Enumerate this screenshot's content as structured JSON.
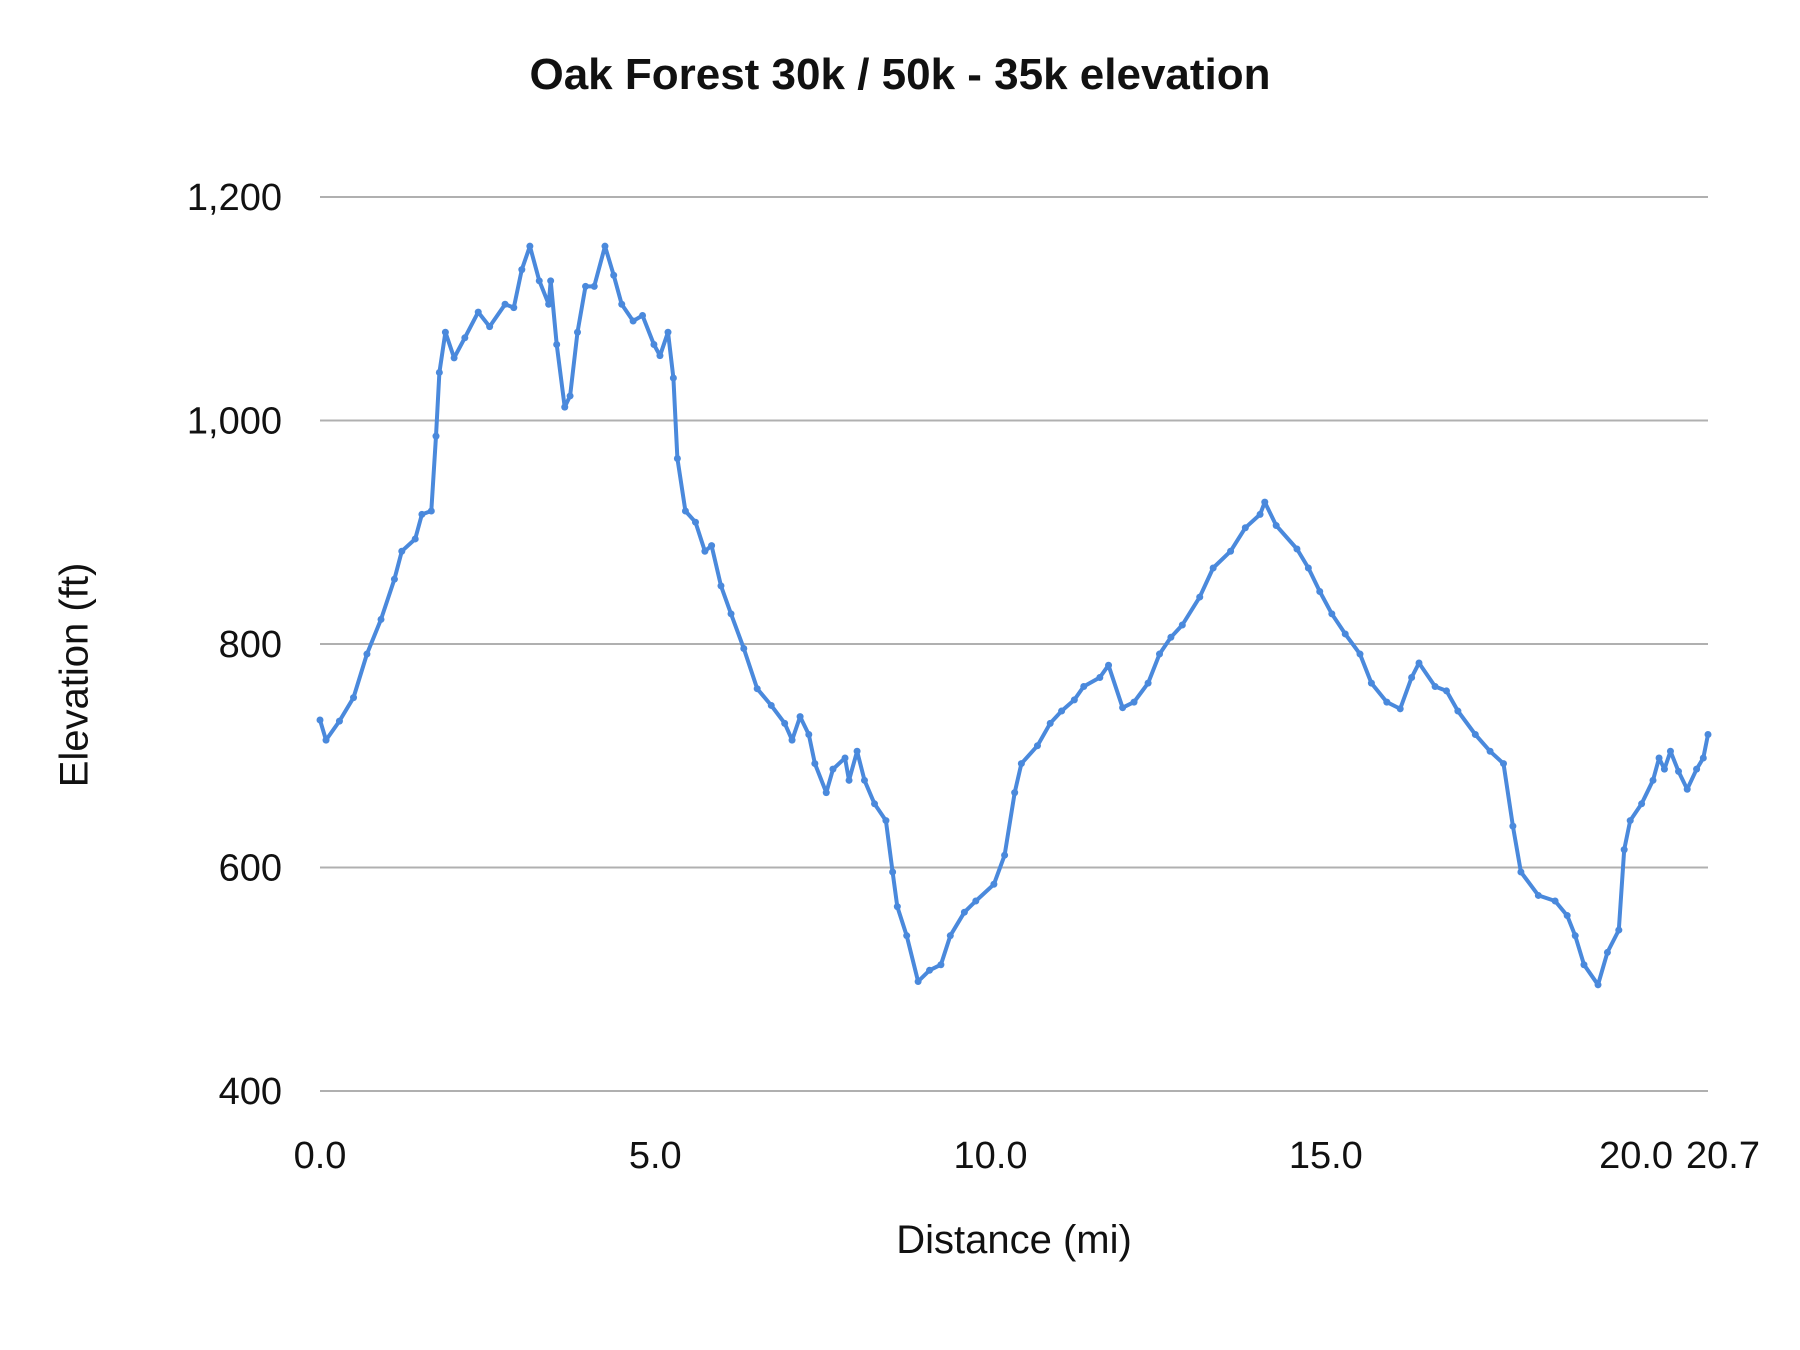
{
  "chart_data": {
    "type": "line",
    "title": "Oak Forest 30k / 50k  - 35k  elevation",
    "xlabel": "Distance (mi)",
    "ylabel": "Elevation (ft)",
    "xlim": [
      0,
      20.7
    ],
    "ylim": [
      400,
      1200
    ],
    "grid": true,
    "legend": "none",
    "color": "#4a89dc",
    "yticks": [
      400,
      600,
      800,
      1000,
      1200
    ],
    "ytick_labels": [
      "400",
      "600",
      "800",
      "1,000",
      "1,200"
    ],
    "xticks": [
      0,
      5,
      10,
      15,
      20,
      20.7
    ],
    "xtick_labels": [
      "0.0",
      "5.0",
      "10.0",
      "15.0",
      "20.0",
      "20.7"
    ],
    "series": [
      {
        "name": "Elevation",
        "x": [
          0.0,
          0.09,
          0.29,
          0.5,
          0.7,
          0.91,
          1.11,
          1.22,
          1.42,
          1.52,
          1.66,
          1.73,
          1.78,
          1.87,
          2.0,
          2.16,
          2.36,
          2.53,
          2.76,
          2.89,
          3.01,
          3.13,
          3.27,
          3.41,
          3.44,
          3.53,
          3.65,
          3.73,
          3.84,
          3.96,
          4.09,
          4.25,
          4.38,
          4.5,
          4.67,
          4.81,
          4.98,
          5.07,
          5.19,
          5.27,
          5.33,
          5.45,
          5.6,
          5.74,
          5.84,
          5.98,
          6.13,
          6.32,
          6.52,
          6.73,
          6.93,
          7.04,
          7.16,
          7.29,
          7.38,
          7.55,
          7.65,
          7.83,
          7.89,
          8.01,
          8.12,
          8.27,
          8.44,
          8.54,
          8.61,
          8.75,
          8.92,
          9.09,
          9.26,
          9.4,
          9.61,
          9.78,
          10.05,
          10.21,
          10.36,
          10.46,
          10.7,
          10.89,
          11.06,
          11.25,
          11.39,
          11.63,
          11.76,
          11.97,
          12.14,
          12.35,
          12.52,
          12.69,
          12.86,
          13.12,
          13.32,
          13.58,
          13.8,
          14.02,
          14.09,
          14.26,
          14.57,
          14.74,
          14.91,
          15.09,
          15.29,
          15.51,
          15.68,
          15.91,
          16.11,
          16.28,
          16.39,
          16.63,
          16.8,
          16.97,
          17.23,
          17.45,
          17.65,
          17.79,
          17.91,
          18.17,
          18.42,
          18.6,
          18.72,
          18.85,
          19.06,
          19.2,
          19.37,
          19.45,
          19.54,
          19.71,
          19.88,
          19.97,
          20.05,
          20.14,
          20.26,
          20.39,
          20.53,
          20.63,
          20.7
        ],
        "y": [
          732,
          714,
          731,
          752,
          791,
          822,
          858,
          883,
          894,
          916,
          919,
          986,
          1043,
          1079,
          1056,
          1074,
          1097,
          1084,
          1104,
          1101,
          1135,
          1156,
          1125,
          1104,
          1125,
          1068,
          1012,
          1022,
          1079,
          1120,
          1120,
          1156,
          1130,
          1104,
          1089,
          1094,
          1068,
          1058,
          1079,
          1038,
          966,
          919,
          909,
          883,
          888,
          852,
          827,
          796,
          760,
          745,
          729,
          714,
          735,
          719,
          693,
          667,
          688,
          698,
          678,
          704,
          678,
          657,
          642,
          596,
          565,
          539,
          498,
          508,
          513,
          539,
          560,
          570,
          585,
          611,
          667,
          693,
          709,
          729,
          740,
          750,
          762,
          770,
          781,
          743,
          748,
          765,
          791,
          806,
          817,
          842,
          868,
          883,
          904,
          916,
          927,
          906,
          885,
          868,
          847,
          827,
          809,
          791,
          765,
          748,
          742,
          770,
          783,
          762,
          758,
          740,
          719,
          704,
          693,
          637,
          596,
          575,
          570,
          557,
          539,
          513,
          495,
          524,
          544,
          616,
          642,
          657,
          678,
          698,
          688,
          704,
          686,
          670,
          688,
          698,
          719
        ]
      }
    ]
  }
}
